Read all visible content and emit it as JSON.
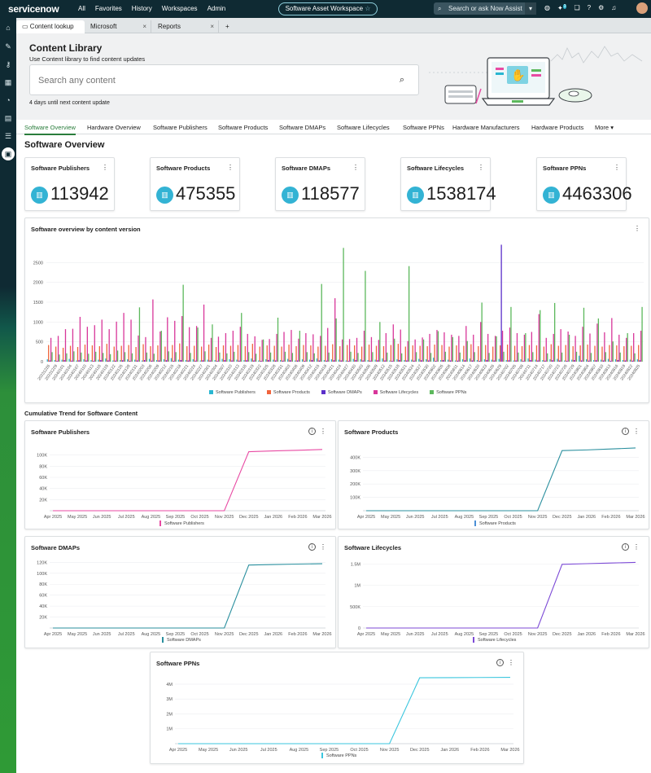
{
  "topbar": {
    "logo": "servicenow",
    "nav": [
      "All",
      "Favorites",
      "History",
      "Workspaces",
      "Admin"
    ],
    "workspace": "Software Asset Workspace",
    "search_placeholder": "Search or ask Now Assist",
    "notification_count": "3"
  },
  "tabs": [
    {
      "label": "Content lookup"
    },
    {
      "label": "Microsoft"
    },
    {
      "label": "Reports"
    }
  ],
  "header": {
    "title": "Content Library",
    "subtitle": "Use Content library to find content updates",
    "search_placeholder": "Search any content",
    "note": "4 days until next content update"
  },
  "subnav": [
    "Software Overview",
    "Hardware Overview",
    "Software Publishers",
    "Software Products",
    "Software DMAPs",
    "Software Lifecycles",
    "Software PPNs",
    "Hardware Manufacturers",
    "Hardware Products",
    "More"
  ],
  "page_title": "Software Overview",
  "kpis": [
    {
      "label": "Software Publishers",
      "value": "113942"
    },
    {
      "label": "Software Products",
      "value": "475355"
    },
    {
      "label": "Software DMAPs",
      "value": "118577"
    },
    {
      "label": "Software Lifecycles",
      "value": "1538174"
    },
    {
      "label": "Software PPNs",
      "value": "4463306"
    }
  ],
  "overview_title": "Software overview by content version",
  "cumulative_title": "Cumulative Trend for Software Content",
  "colors": {
    "publishers": "#29b6d1",
    "products": "#f0643c",
    "dmaps": "#5b2fc9",
    "lifecycles": "#d8369a",
    "ppns": "#5cb85c",
    "line_teal": "#2a8f9e",
    "line_pink": "#e84aa3",
    "line_purple": "#7c4ad6",
    "line_cyan": "#3bc6de",
    "accent": "#2a7d3c"
  },
  "chart_data": [
    {
      "type": "bar",
      "title": "Software overview by content version",
      "categories": [
        "20231226",
        "20231229",
        "20240101",
        "20240104",
        "20240107",
        "20240110",
        "20240113",
        "20240116",
        "20240119",
        "20240122",
        "20240125",
        "20240128",
        "20240131",
        "20240203",
        "20240206",
        "20240209",
        "20240212",
        "20240215",
        "20240218",
        "20240221",
        "20240224",
        "20240227",
        "20240301",
        "20240304",
        "20240307",
        "20240310",
        "20240313",
        "20240316",
        "20240319",
        "20240322",
        "20240325",
        "20240328",
        "20240331",
        "20240403",
        "20240406",
        "20240409",
        "20240412",
        "20240415",
        "20240418",
        "20240421",
        "20240424",
        "20240427",
        "20240430",
        "20240503",
        "20240506",
        "20240509",
        "20240512",
        "20240515",
        "20240518",
        "20240521",
        "20240524",
        "20240527",
        "20240530",
        "20240602",
        "20240605",
        "20240608",
        "20240611",
        "20240614",
        "20240617",
        "20240620",
        "20240623",
        "20240626",
        "20240629",
        "20240702",
        "20240705",
        "20240708",
        "20240711",
        "20240714",
        "20240717",
        "20240720",
        "20240723",
        "20240726",
        "20240729",
        "20240801",
        "20240804",
        "20240807",
        "20240810",
        "20240813",
        "20240816",
        "20240819",
        "20240822",
        "20240825"
      ],
      "xlabels_shown": [
        "20231226",
        "20231229",
        "20240101",
        "20240104",
        "20240107",
        "20240110",
        "20240113",
        "20240116",
        "20240119",
        "20240122",
        "20240125",
        "20240128",
        "20240131",
        "20240203",
        "20240206",
        "20240209",
        "20240212",
        "20240215",
        "20240218",
        "20240221",
        "20240224",
        "20240227",
        "20240301",
        "20240304",
        "20240307",
        "20240310",
        "20240313",
        "20240316",
        "20240319",
        "20240322",
        "20240325",
        "20240328",
        "20240331",
        "20240403",
        "20240406",
        "20240409",
        "20240412",
        "20240415",
        "20240418",
        "20240421",
        "20240424",
        "20240427",
        "20240430",
        "20240503",
        "20240506",
        "20240509",
        "20240512",
        "20240515",
        "20240518",
        "20240521",
        "20240524",
        "20240527",
        "20240530",
        "20240602",
        "20240605",
        "20240608",
        "20240611",
        "20240614",
        "20240617",
        "20240620",
        "20240623",
        "20240626",
        "20240629",
        "20240702",
        "20240705",
        "20240708",
        "20240711",
        "20240714",
        "20240717",
        "20240720",
        "20240723",
        "20240726",
        "20240729",
        "20240801",
        "20240804",
        "20240807",
        "20240810",
        "20240813",
        "20240816",
        "20240819",
        "20240822",
        "20240825"
      ],
      "ylim": [
        0,
        3000
      ],
      "yticks": [
        0,
        500,
        1000,
        1500,
        2000,
        2500
      ],
      "series": [
        {
          "name": "Software Publishers",
          "values": [
            60,
            40,
            50,
            70,
            30,
            60,
            40,
            50,
            80,
            30,
            40,
            60,
            50,
            30,
            70,
            40,
            60,
            90,
            50,
            40,
            60,
            30,
            50,
            40,
            70,
            60,
            50,
            40,
            80,
            30,
            60,
            50,
            40,
            70,
            30,
            60,
            50,
            80,
            40,
            60,
            50,
            30,
            70,
            60,
            40,
            50,
            80,
            30,
            60,
            40,
            50,
            70,
            60,
            100,
            40,
            50,
            30,
            60,
            80,
            40,
            60,
            50,
            70,
            40,
            30,
            60,
            80,
            50,
            40,
            60,
            70,
            30,
            50,
            150,
            60,
            40,
            50,
            70,
            60,
            40,
            50,
            60
          ]
        },
        {
          "name": "Software Products",
          "values": [
            420,
            380,
            350,
            400,
            370,
            430,
            410,
            390,
            450,
            380,
            400,
            420,
            370,
            440,
            390,
            410,
            380,
            420,
            460,
            390,
            400,
            380,
            430,
            370,
            410,
            400,
            420,
            390,
            450,
            380,
            410,
            400,
            380,
            430,
            390,
            420,
            410,
            380,
            400,
            440,
            390,
            420,
            410,
            380,
            430,
            400,
            390,
            420,
            450,
            380,
            410,
            400,
            390,
            430,
            420,
            380,
            410,
            400,
            440,
            390,
            420,
            380,
            410,
            430,
            400,
            390,
            420,
            410,
            380,
            440,
            400,
            420,
            390,
            410,
            430,
            400,
            380,
            420,
            410,
            390,
            400,
            420
          ]
        },
        {
          "name": "Software DMAPs",
          "values": [
            30,
            20,
            40,
            25,
            35,
            30,
            20,
            40,
            30,
            25,
            35,
            20,
            30,
            40,
            25,
            30,
            35,
            20,
            40,
            30,
            25,
            35,
            30,
            20,
            40,
            30,
            25,
            35,
            30,
            20,
            40,
            30,
            25,
            35,
            30,
            20,
            40,
            30,
            25,
            35,
            30,
            20,
            40,
            30,
            25,
            35,
            30,
            20,
            40,
            30,
            25,
            35,
            30,
            20,
            40,
            30,
            25,
            35,
            30,
            20,
            40,
            30,
            2950,
            35,
            30,
            20,
            40,
            30,
            25,
            35,
            30,
            20,
            40,
            30,
            25,
            35,
            30,
            20,
            40,
            30,
            25,
            35
          ]
        },
        {
          "name": "Software Lifecycles",
          "values": [
            600,
            650,
            820,
            830,
            1130,
            880,
            920,
            1060,
            820,
            1010,
            1230,
            1060,
            660,
            620,
            1570,
            760,
            1120,
            1030,
            1150,
            870,
            900,
            1440,
            600,
            630,
            720,
            780,
            880,
            700,
            640,
            550,
            570,
            700,
            750,
            800,
            580,
            720,
            690,
            650,
            850,
            1600,
            560,
            570,
            600,
            780,
            620,
            550,
            720,
            940,
            810,
            520,
            560,
            610,
            700,
            800,
            740,
            680,
            650,
            900,
            680,
            1000,
            700,
            650,
            780,
            860,
            720,
            680,
            750,
            1200,
            600,
            700,
            820,
            760,
            650,
            880,
            710,
            960,
            740,
            1100,
            680,
            600,
            720,
            780
          ]
        },
        {
          "name": "Software PPNs",
          "values": [
            240,
            180,
            210,
            260,
            230,
            200,
            250,
            220,
            190,
            280,
            240,
            210,
            1370,
            230,
            200,
            780,
            260,
            240,
            1940,
            220,
            860,
            260,
            940,
            230,
            210,
            250,
            1230,
            240,
            200,
            560,
            230,
            1110,
            250,
            220,
            780,
            240,
            210,
            1960,
            230,
            1090,
            2870,
            250,
            220,
            2290,
            240,
            1000,
            230,
            580,
            210,
            2410,
            240,
            560,
            220,
            770,
            250,
            620,
            230,
            520,
            240,
            1490,
            220,
            640,
            250,
            1380,
            230,
            720,
            240,
            1300,
            210,
            1480,
            230,
            680,
            250,
            1360,
            220,
            1090,
            240,
            510,
            230,
            720,
            210,
            1380
          ]
        }
      ],
      "legend_position": "bottom"
    },
    {
      "type": "line",
      "title": "Software Publishers",
      "x": [
        "Apr 2025",
        "May 2025",
        "Jun 2025",
        "Jul 2025",
        "Aug 2025",
        "Sep 2025",
        "Oct 2025",
        "Nov 2025",
        "Dec 2025",
        "Jan 2026",
        "Feb 2026",
        "Mar 2026"
      ],
      "yticks": [
        "20K",
        "40K",
        "60K",
        "80K",
        "100K"
      ],
      "ylim": [
        0,
        120000
      ],
      "series": [
        {
          "name": "Software Publishers",
          "values": [
            0,
            0,
            0,
            0,
            0,
            0,
            0,
            0,
            106000,
            107500,
            108500,
            110000
          ]
        }
      ]
    },
    {
      "type": "line",
      "title": "Software Products",
      "x": [
        "Apr 2025",
        "May 2025",
        "Jun 2025",
        "Jul 2025",
        "Aug 2025",
        "Sep 2025",
        "Oct 2025",
        "Nov 2025",
        "Dec 2025",
        "Jan 2026",
        "Feb 2026",
        "Mar 2026"
      ],
      "yticks": [
        "100K",
        "200K",
        "300K",
        "400K"
      ],
      "ylim": [
        0,
        500000
      ],
      "series": [
        {
          "name": "Software Products",
          "values": [
            0,
            0,
            0,
            0,
            0,
            0,
            0,
            0,
            450000,
            455000,
            462000,
            470000
          ]
        }
      ]
    },
    {
      "type": "line",
      "title": "Software DMAPs",
      "x": [
        "Apr 2025",
        "May 2025",
        "Jun 2025",
        "Jul 2025",
        "Aug 2025",
        "Sep 2025",
        "Oct 2025",
        "Nov 2025",
        "Dec 2025",
        "Jan 2026",
        "Feb 2026",
        "Mar 2026"
      ],
      "yticks": [
        "20K",
        "40K",
        "60K",
        "80K",
        "100K",
        "120K"
      ],
      "ylim": [
        0,
        125000
      ],
      "series": [
        {
          "name": "Software DMAPs",
          "values": [
            0,
            0,
            0,
            0,
            0,
            0,
            0,
            0,
            115000,
            116000,
            116800,
            117500
          ]
        }
      ]
    },
    {
      "type": "line",
      "title": "Software Lifecycles",
      "x": [
        "Apr 2025",
        "May 2025",
        "Jun 2025",
        "Jul 2025",
        "Aug 2025",
        "Sep 2025",
        "Oct 2025",
        "Nov 2025",
        "Dec 2025",
        "Jan 2026",
        "Feb 2026",
        "Mar 2026"
      ],
      "yticks": [
        "0",
        "500K",
        "1M",
        "1.5M"
      ],
      "ylim": [
        0,
        1600000
      ],
      "series": [
        {
          "name": "Software Lifecycles",
          "values": [
            0,
            0,
            0,
            0,
            0,
            0,
            0,
            0,
            1490000,
            1505000,
            1520000,
            1535000
          ]
        }
      ]
    },
    {
      "type": "line",
      "title": "Software PPNs",
      "x": [
        "Apr 2025",
        "May 2025",
        "Jun 2025",
        "Jul 2025",
        "Aug 2025",
        "Sep 2025",
        "Oct 2025",
        "Nov 2025",
        "Dec 2025",
        "Jan 2026",
        "Feb 2026",
        "Mar 2026"
      ],
      "yticks": [
        "1M",
        "2M",
        "3M",
        "4M"
      ],
      "ylim": [
        0,
        4600000
      ],
      "series": [
        {
          "name": "Software PPNs",
          "values": [
            0,
            0,
            0,
            0,
            0,
            0,
            0,
            0,
            4430000,
            4440000,
            4450000,
            4460000
          ]
        }
      ]
    }
  ]
}
